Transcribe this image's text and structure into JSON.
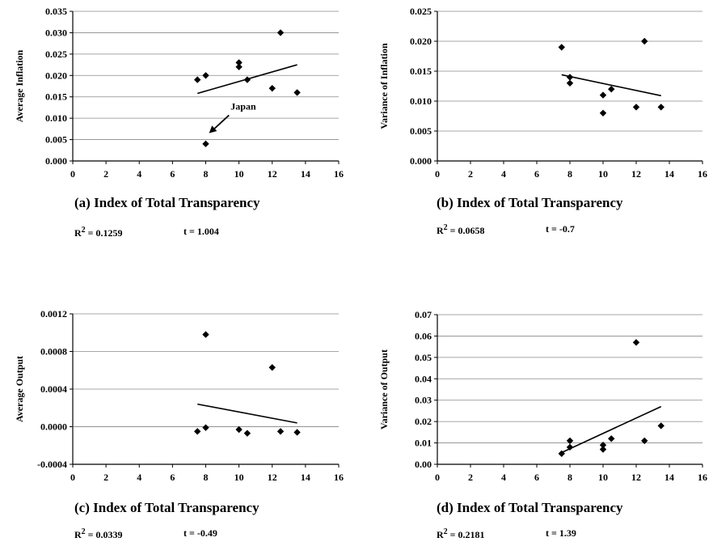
{
  "chart_data": [
    {
      "type": "scatter",
      "id": "a",
      "caption": "(a) Index of Total Transparency",
      "ylabel": "Average Inflation",
      "xlim": [
        0,
        16
      ],
      "xticks": [
        "0",
        "2",
        "4",
        "6",
        "8",
        "10",
        "12",
        "14",
        "16"
      ],
      "ylim": [
        0,
        0.035
      ],
      "yticks": [
        "0.000",
        "0.005",
        "0.010",
        "0.015",
        "0.020",
        "0.025",
        "0.030",
        "0.035"
      ],
      "grid": true,
      "points": [
        [
          7.5,
          0.019
        ],
        [
          8,
          0.02
        ],
        [
          8,
          0.004
        ],
        [
          10,
          0.023
        ],
        [
          10,
          0.022
        ],
        [
          10.5,
          0.019
        ],
        [
          12,
          0.017
        ],
        [
          12.5,
          0.03
        ],
        [
          13.5,
          0.016
        ]
      ],
      "trend": [
        [
          7.5,
          0.0158
        ],
        [
          13.5,
          0.0225
        ]
      ],
      "annotation": {
        "text": "Japan",
        "at": [
          8.2,
          0.0065
        ],
        "from": [
          9.4,
          0.0107
        ]
      },
      "r2_label": "R",
      "r2_exp": "2",
      "r2_value": " = 0.1259",
      "t_value": "t = 1.004"
    },
    {
      "type": "scatter",
      "id": "b",
      "caption": "(b) Index of Total Transparency",
      "ylabel": "Variance of Inflation",
      "xlim": [
        0,
        16
      ],
      "xticks": [
        "0",
        "2",
        "4",
        "6",
        "8",
        "10",
        "12",
        "14",
        "16"
      ],
      "ylim": [
        0,
        0.025
      ],
      "yticks": [
        "0.000",
        "0.005",
        "0.010",
        "0.015",
        "0.020",
        "0.025"
      ],
      "grid": true,
      "points": [
        [
          7.5,
          0.019
        ],
        [
          8,
          0.014
        ],
        [
          8,
          0.013
        ],
        [
          10,
          0.011
        ],
        [
          10,
          0.008
        ],
        [
          10.5,
          0.012
        ],
        [
          12,
          0.009
        ],
        [
          12.5,
          0.02
        ],
        [
          13.5,
          0.009
        ]
      ],
      "trend": [
        [
          7.5,
          0.0144
        ],
        [
          13.5,
          0.0109
        ]
      ],
      "r2_label": "R",
      "r2_exp": "2",
      "r2_value": " = 0.0658",
      "t_value": "t = -0.7"
    },
    {
      "type": "scatter",
      "id": "c",
      "caption": "(c) Index of Total Transparency",
      "ylabel": "Average Output",
      "xlim": [
        0,
        16
      ],
      "xticks": [
        "0",
        "2",
        "4",
        "6",
        "8",
        "10",
        "12",
        "14",
        "16"
      ],
      "ylim": [
        -0.0004,
        0.0012
      ],
      "yticks": [
        "-0.0004",
        "0.0000",
        "0.0004",
        "0.0008",
        "0.0012"
      ],
      "grid": true,
      "points": [
        [
          7.5,
          -5e-05
        ],
        [
          8,
          0.00098
        ],
        [
          8,
          -1e-05
        ],
        [
          10,
          -3e-05
        ],
        [
          10.5,
          -7e-05
        ],
        [
          12,
          0.00063
        ],
        [
          12.5,
          -5e-05
        ],
        [
          13.5,
          -6e-05
        ]
      ],
      "trend": [
        [
          7.5,
          0.00024
        ],
        [
          13.5,
          4e-05
        ]
      ],
      "r2_label": "R",
      "r2_exp": "2",
      "r2_value": " = 0.0339",
      "t_value": "t = -0.49"
    },
    {
      "type": "scatter",
      "id": "d",
      "caption": "(d) Index of Total Transparency",
      "ylabel": "Variance of Output",
      "xlim": [
        0,
        16
      ],
      "xticks": [
        "0",
        "2",
        "4",
        "6",
        "8",
        "10",
        "12",
        "14",
        "16"
      ],
      "ylim": [
        0,
        0.07
      ],
      "yticks": [
        "0.00",
        "0.01",
        "0.02",
        "0.03",
        "0.04",
        "0.05",
        "0.06",
        "0.07"
      ],
      "grid": true,
      "points": [
        [
          7.5,
          0.005
        ],
        [
          8,
          0.011
        ],
        [
          8,
          0.008
        ],
        [
          10,
          0.009
        ],
        [
          10,
          0.007
        ],
        [
          10.5,
          0.012
        ],
        [
          12,
          0.057
        ],
        [
          12.5,
          0.011
        ],
        [
          13.5,
          0.018
        ]
      ],
      "trend": [
        [
          7.5,
          0.0055
        ],
        [
          13.5,
          0.027
        ]
      ],
      "r2_label": "R",
      "r2_exp": "2",
      "r2_value": " = 0.2181",
      "t_value": "t = 1.39"
    }
  ]
}
